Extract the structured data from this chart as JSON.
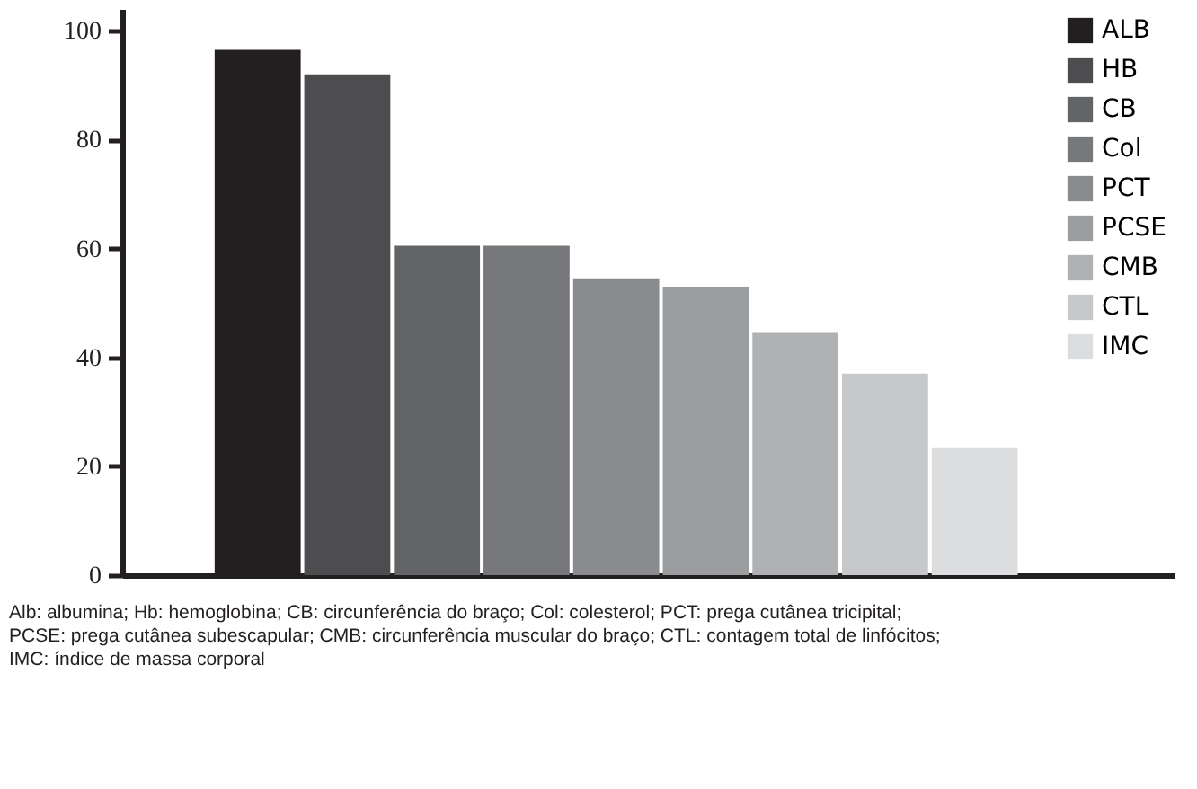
{
  "chart_data": {
    "type": "bar",
    "categories": [
      null
    ],
    "series": [
      {
        "name": "ALB",
        "color": "#231f20",
        "values": [
          96.5
        ]
      },
      {
        "name": "HB",
        "color": "#4d4d4f",
        "values": [
          92
        ]
      },
      {
        "name": "CB",
        "color": "#636466",
        "values": [
          60.5
        ]
      },
      {
        "name": "Col",
        "color": "#77787b",
        "values": [
          60.5
        ]
      },
      {
        "name": "PCT",
        "color": "#8a8b8d",
        "values": [
          54.5
        ]
      },
      {
        "name": "PCSE",
        "color": "#9c9d9f",
        "values": [
          53
        ]
      },
      {
        "name": "CMB",
        "color": "#b0b1b3",
        "values": [
          44.5
        ]
      },
      {
        "name": "CTL",
        "color": "#c7c8ca",
        "values": [
          37
        ]
      },
      {
        "name": "IMC",
        "color": "#dcdddf",
        "values": [
          23.5
        ]
      }
    ],
    "ylim": [
      0,
      104
    ],
    "yticks": [
      0,
      20,
      40,
      60,
      80,
      100
    ],
    "tick_labels": "y",
    "grid": false,
    "legend": "top right",
    "annotations": [
      "Alb: albumina; Hb: hemoglobina; CB: circunferência do braço; Col: colesterol; PCT: prega cutânea tricipital; PCSE: prega cutânea subescapular; CMB: circunferência muscular do braço; CTL: contagem total de linfócitos; IMC: índice de massa corporal"
    ]
  }
}
